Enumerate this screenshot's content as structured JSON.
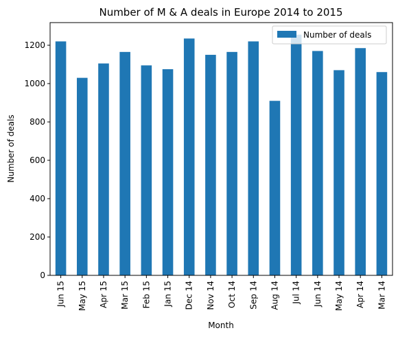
{
  "chart_data": {
    "type": "bar",
    "title": "Number of M & A deals in Europe 2014 to 2015",
    "xlabel": "Month",
    "ylabel": "Number of deals",
    "categories": [
      "Jun 15",
      "May 15",
      "Apr 15",
      "Mar 15",
      "Feb 15",
      "Jan 15",
      "Dec 14",
      "Nov 14",
      "Oct 14",
      "Sep 14",
      "Aug 14",
      "Jul 14",
      "Jun 14",
      "May 14",
      "Apr 14",
      "Mar 14"
    ],
    "series": [
      {
        "name": "Number of deals",
        "color": "#1f77b4",
        "values": [
          1220,
          1030,
          1105,
          1165,
          1095,
          1075,
          1235,
          1150,
          1165,
          1220,
          910,
          1255,
          1170,
          1070,
          1185,
          1060
        ]
      }
    ],
    "yticks": [
      0,
      200,
      400,
      600,
      800,
      1000,
      1200
    ],
    "ylim": [
      0,
      1318
    ],
    "grid": false,
    "legend_position": "top-right"
  }
}
